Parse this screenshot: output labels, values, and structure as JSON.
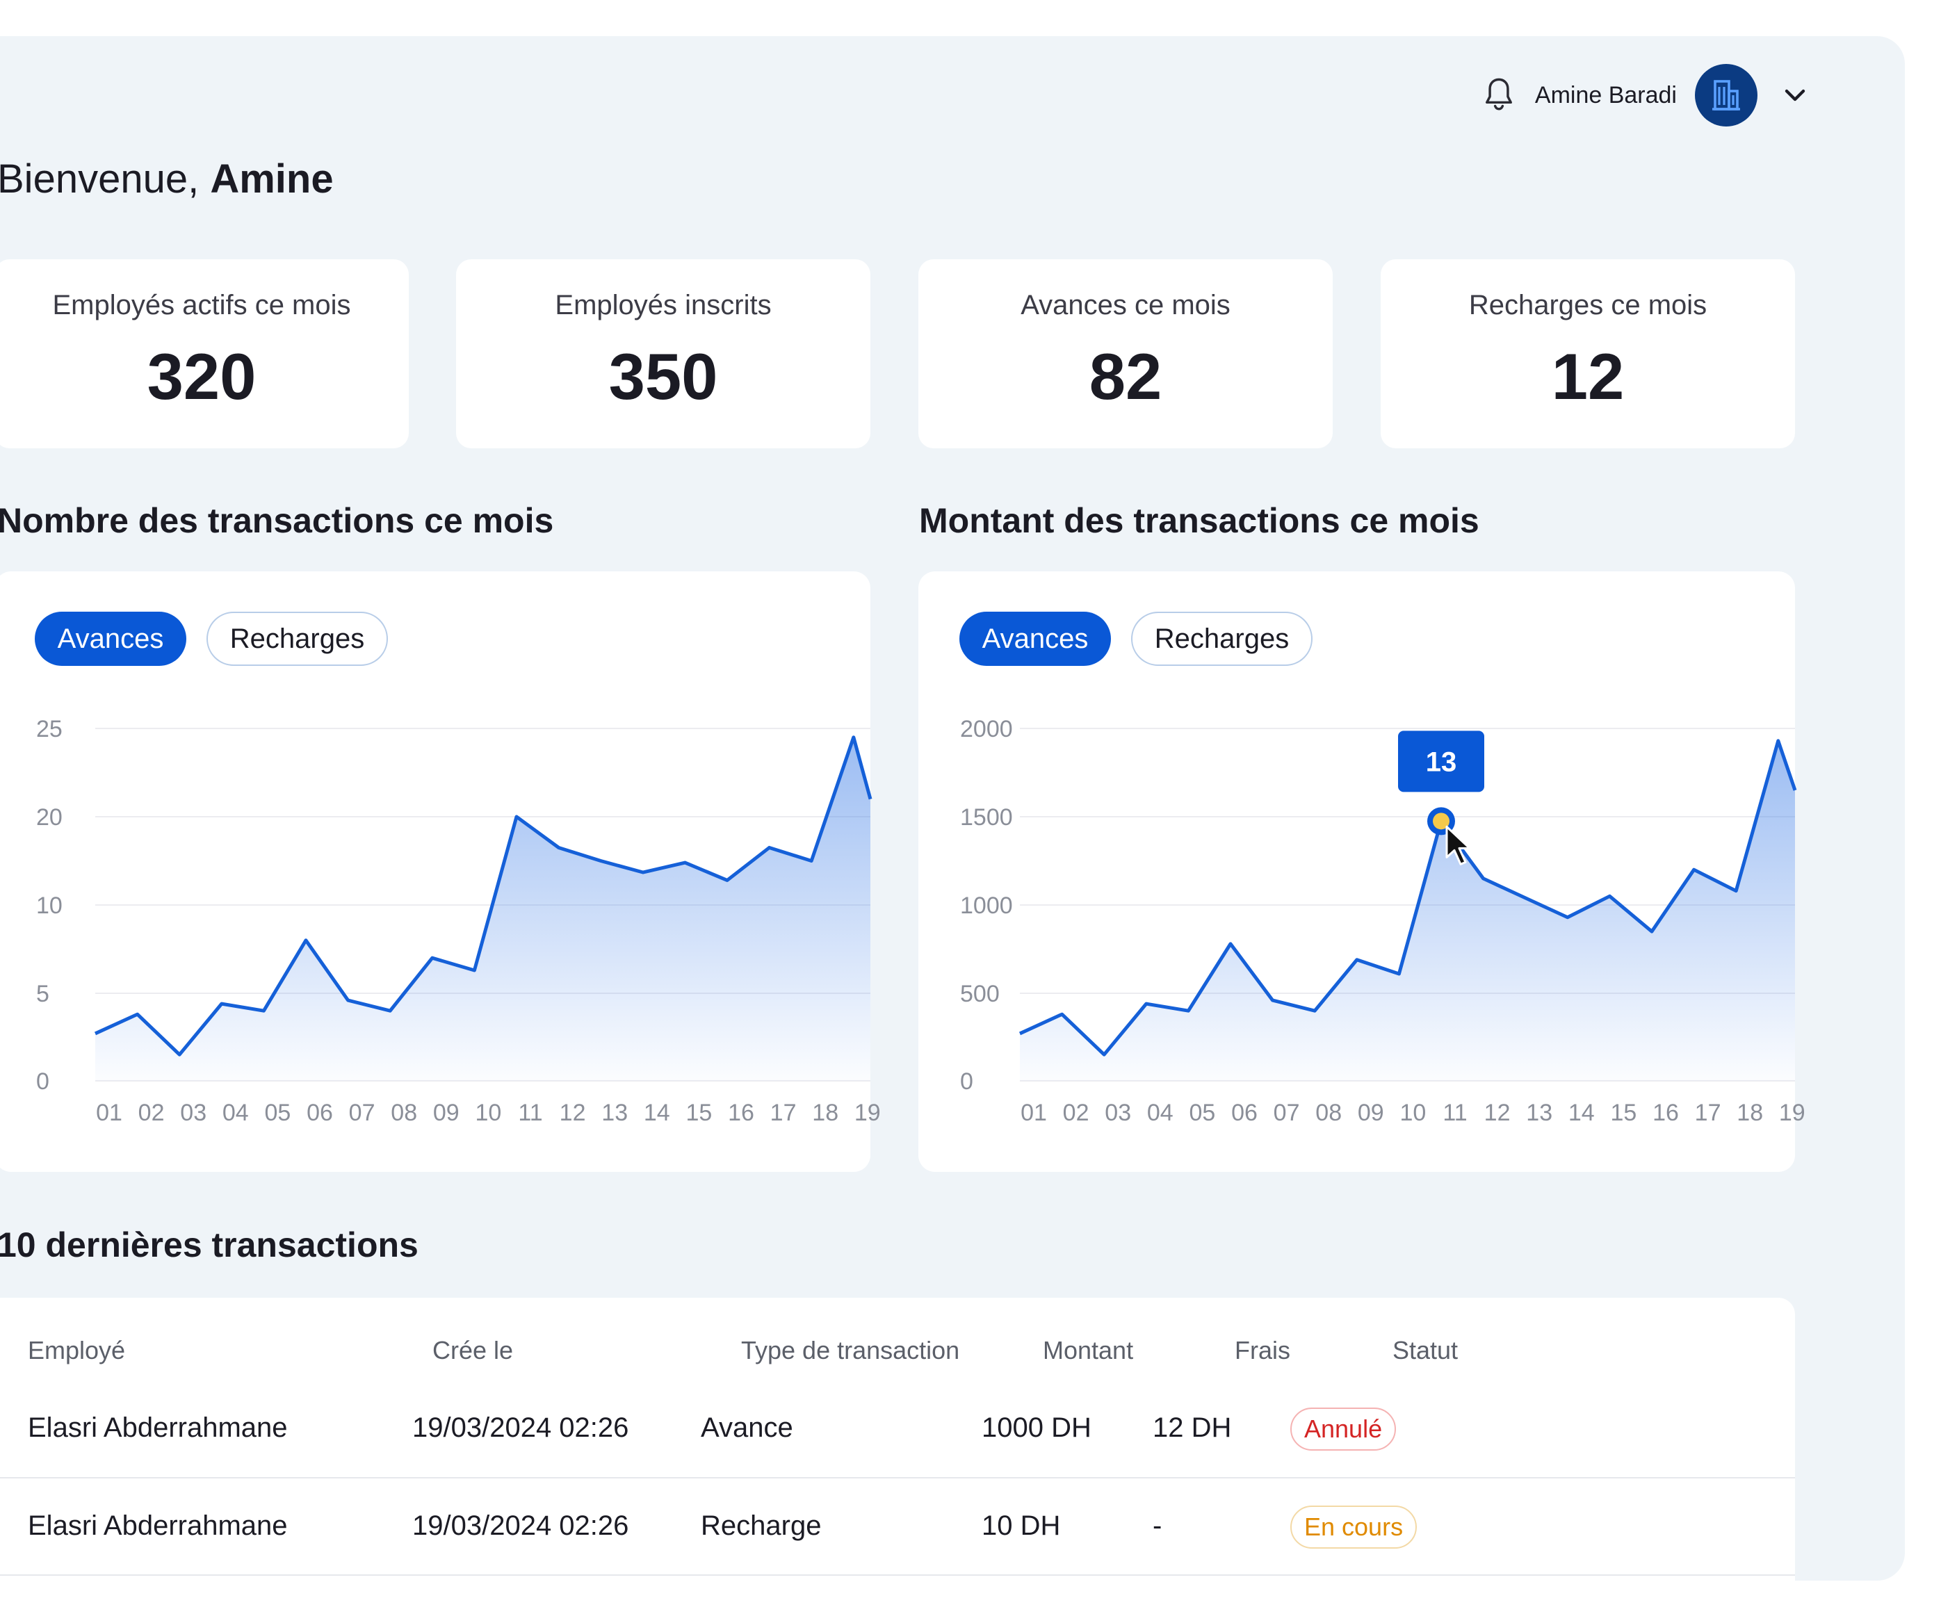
{
  "header": {
    "user_name": "Amine Baradi"
  },
  "welcome": {
    "prefix": "Bienvenue, ",
    "name": "Amine"
  },
  "stats": [
    {
      "label": "Employés actifs ce mois",
      "value": "320"
    },
    {
      "label": "Employés inscrits",
      "value": "350"
    },
    {
      "label": "Avances ce mois",
      "value": "82"
    },
    {
      "label": "Recharges ce mois",
      "value": "12"
    }
  ],
  "charts_section": {
    "count_title": "Nombre des transactions ce mois",
    "amount_title": "Montant des transactions ce mois",
    "tabs": [
      "Avances",
      "Recharges"
    ],
    "active_tab": "Avances",
    "tooltip_value": "13"
  },
  "chart_data": [
    {
      "type": "area",
      "x": [
        "01",
        "02",
        "03",
        "04",
        "05",
        "06",
        "07",
        "08",
        "09",
        "10",
        "11",
        "12",
        "13",
        "14",
        "15",
        "16",
        "17",
        "18",
        "19"
      ],
      "series": [
        {
          "values": [
            2.7,
            3.8,
            1.5,
            4.4,
            4.0,
            8.0,
            4.6,
            4.0,
            7.0,
            6.3,
            20.0,
            16.5,
            15.0,
            13.7,
            14.8,
            12.8,
            16.5,
            15.0,
            24.5
          ]
        }
      ],
      "yticks": [
        "25",
        "20",
        "10",
        "5",
        "0"
      ],
      "color": "#1560d8"
    },
    {
      "type": "area",
      "x": [
        "01",
        "02",
        "03",
        "04",
        "05",
        "06",
        "07",
        "08",
        "09",
        "10",
        "11",
        "12",
        "13",
        "14",
        "15",
        "16",
        "17",
        "18",
        "19"
      ],
      "series": [
        {
          "values": [
            270,
            380,
            150,
            440,
            400,
            780,
            460,
            400,
            690,
            610,
            1475,
            1150,
            1040,
            930,
            1050,
            850,
            1200,
            1080,
            1930
          ]
        }
      ],
      "yticks": [
        "2000",
        "1500",
        "1000",
        "500",
        "0"
      ],
      "highlight_index": 10,
      "color": "#1560d8"
    }
  ],
  "table": {
    "title": "10 dernières transactions",
    "columns": [
      "Employé",
      "Crée le",
      "Type de transaction",
      "Montant",
      "Frais",
      "Statut"
    ],
    "rows": [
      {
        "employee": "Elasri Abderrahmane",
        "created": "19/03/2024 02:26",
        "type": "Avance",
        "amount": "1000 DH",
        "fee": "12 DH",
        "status": "Annulé"
      },
      {
        "employee": "Elasri Abderrahmane",
        "created": "19/03/2024 02:26",
        "type": "Recharge",
        "amount": "10 DH",
        "fee": "-",
        "status": "En cours"
      }
    ]
  },
  "colors": {
    "primary": "#0a58d6",
    "danger": "#d42424",
    "warning": "#e08a00",
    "background": "#eff4f8"
  },
  "icons": {
    "notifications": "bell-icon",
    "avatar": "building-icon",
    "menu": "chevron-down-icon",
    "cursor": "cursor-icon"
  }
}
